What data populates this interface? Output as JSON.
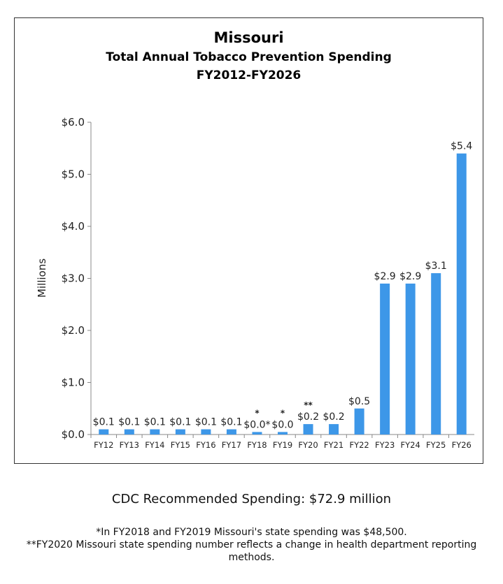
{
  "chart_data": {
    "type": "bar",
    "title": "Missouri",
    "subtitle": "Total Annual Tobacco Prevention Spending",
    "subtitle2": "FY2012-FY2026",
    "ylabel": "Millions",
    "xlabel": "",
    "ylim": [
      0,
      6
    ],
    "yticks": [
      "$0.0",
      "$1.0",
      "$2.0",
      "$3.0",
      "$4.0",
      "$5.0",
      "$6.0"
    ],
    "categories": [
      "FY12",
      "FY13",
      "FY14",
      "FY15",
      "FY16",
      "FY17",
      "FY18",
      "FY19",
      "FY20",
      "FY21",
      "FY22",
      "FY23",
      "FY24",
      "FY25",
      "FY26"
    ],
    "values": [
      0.1,
      0.1,
      0.1,
      0.1,
      0.1,
      0.1,
      0.0485,
      0.0485,
      0.2,
      0.2,
      0.5,
      2.9,
      2.9,
      3.1,
      5.4
    ],
    "data_labels": [
      "$0.1",
      "$0.1",
      "$0.1",
      "$0.1",
      "$0.1",
      "$0.1",
      "$0.0*",
      "$0.0",
      "$0.2",
      "$0.2",
      "$0.5",
      "$2.9",
      "$2.9",
      "$3.1",
      "$5.4"
    ],
    "annotations": [
      "",
      "",
      "",
      "",
      "",
      "",
      "*",
      "*",
      "**",
      "",
      "",
      "",
      "",
      "",
      ""
    ],
    "bar_color": "#3d97e8",
    "grid": false,
    "legend": "none"
  },
  "footer": {
    "cdc": "CDC Recommended Spending: $72.9 million",
    "note1": "*In FY2018 and FY2019 Missouri's state spending was $48,500.",
    "note2": "**FY2020 Missouri state spending number reflects a change in health department reporting methods."
  }
}
